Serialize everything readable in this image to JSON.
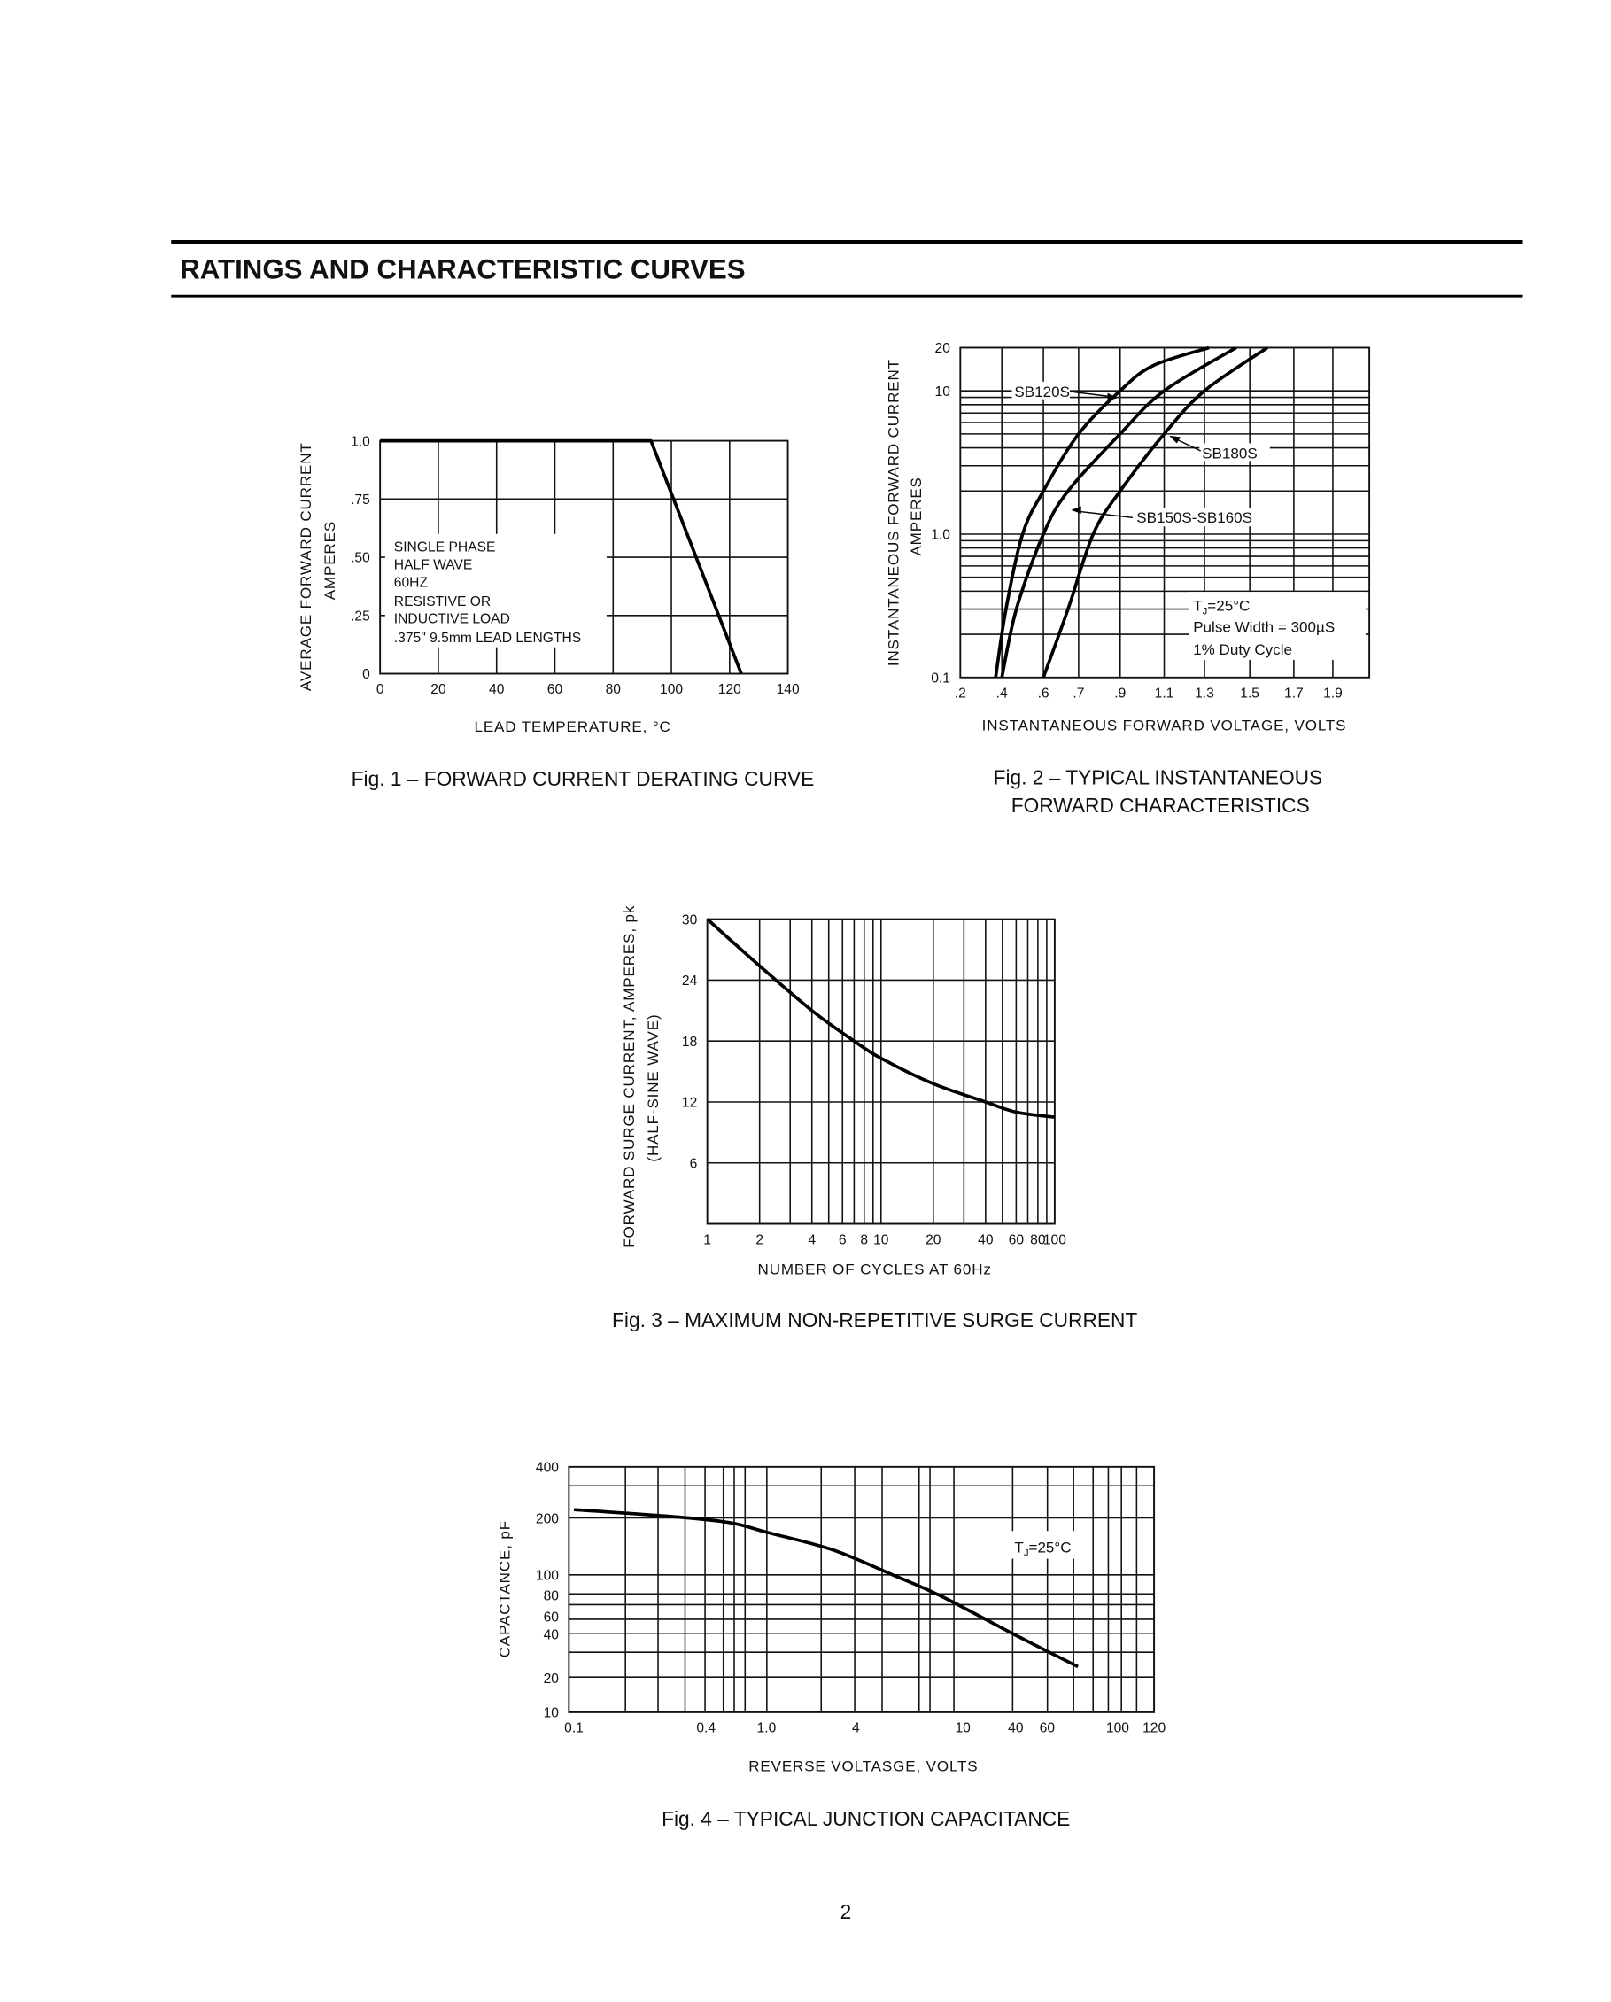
{
  "page": {
    "heading": "RATINGS AND CHARACTERISTIC CURVES",
    "page_number": "2"
  },
  "chart_data": [
    {
      "id": "fig1",
      "type": "line",
      "caption": "Fig. 1 – FORWARD CURRENT DERATING CURVE",
      "xlabel": "LEAD TEMPERATURE, °C",
      "ylabel": [
        "AVERAGE FORWARD CURRENT",
        "AMPERES"
      ],
      "xscale": "linear",
      "yscale": "linear",
      "xlim": [
        0,
        140
      ],
      "ylim": [
        0,
        1.0
      ],
      "grid": true,
      "x_ticks": [
        {
          "v": 0,
          "label": "0"
        },
        {
          "v": 20,
          "label": "20"
        },
        {
          "v": 40,
          "label": "40"
        },
        {
          "v": 60,
          "label": "60"
        },
        {
          "v": 80,
          "label": "80"
        },
        {
          "v": 100,
          "label": "100"
        },
        {
          "v": 120,
          "label": "120"
        },
        {
          "v": 140,
          "label": "140"
        }
      ],
      "y_ticks": [
        {
          "v": 0,
          "label": "0"
        },
        {
          "v": 0.25,
          "label": ".25"
        },
        {
          "v": 0.5,
          "label": ".50"
        },
        {
          "v": 0.75,
          "label": ".75"
        },
        {
          "v": 1.0,
          "label": "1.0"
        }
      ],
      "series": [
        {
          "points": [
            [
              0,
              1.0
            ],
            [
              93,
              1.0
            ],
            [
              124,
              0
            ]
          ]
        }
      ],
      "notes": [
        "SINGLE PHASE",
        "HALF WAVE",
        "60HZ",
        "RESISTIVE OR",
        "INDUCTIVE LOAD",
        ".375\" 9.5mm LEAD LENGTHS"
      ]
    },
    {
      "id": "fig2",
      "type": "line",
      "caption": [
        "Fig. 2 – TYPICAL INSTANTANEOUS",
        "FORWARD CHARACTERISTICS"
      ],
      "xlabel": "INSTANTANEOUS FORWARD VOLTAGE, VOLTS",
      "ylabel": [
        "INSTANTANEOUS FORWARD CURRENT",
        "AMPERES"
      ],
      "xscale": "linear",
      "yscale": "log",
      "xlim": [
        0.2,
        2.1
      ],
      "ylim": [
        0.1,
        20
      ],
      "grid": true,
      "x_ticks": [
        {
          "v": 0.2,
          "label": ".2"
        },
        {
          "v": 0.4,
          "label": ".4"
        },
        {
          "v": 0.6,
          "label": ".6"
        },
        {
          "v": 0.7,
          "label": ".7"
        },
        {
          "v": 0.9,
          "label": ".9"
        },
        {
          "v": 1.1,
          "label": "1.1"
        },
        {
          "v": 1.3,
          "label": "1.3"
        },
        {
          "v": 1.5,
          "label": "1.5"
        },
        {
          "v": 1.7,
          "label": "1.7"
        },
        {
          "v": 1.9,
          "label": "1.9"
        }
      ],
      "y_ticks": [
        {
          "v": 0.1,
          "label": "0.1"
        },
        {
          "v": 1.0,
          "label": "1.0"
        },
        {
          "v": 10,
          "label": "10"
        },
        {
          "v": 20,
          "label": "20"
        }
      ],
      "series": [
        {
          "name": "SB120S",
          "points": [
            [
              0.37,
              0.1
            ],
            [
              0.42,
              0.3
            ],
            [
              0.5,
              1.0
            ],
            [
              0.6,
              2.0
            ],
            [
              0.7,
              5.0
            ],
            [
              0.9,
              10
            ],
            [
              1.05,
              15
            ],
            [
              1.32,
              20
            ]
          ]
        },
        {
          "name": "SB150S-SB160S",
          "points": [
            [
              0.4,
              0.1
            ],
            [
              0.47,
              0.3
            ],
            [
              0.6,
              1.0
            ],
            [
              0.67,
              2.0
            ],
            [
              0.9,
              5.0
            ],
            [
              1.1,
              10
            ],
            [
              1.44,
              20
            ]
          ]
        },
        {
          "name": "SB180S",
          "points": [
            [
              0.6,
              0.1
            ],
            [
              0.67,
              0.3
            ],
            [
              0.77,
              1.0
            ],
            [
              0.9,
              2.0
            ],
            [
              1.1,
              5.0
            ],
            [
              1.3,
              10
            ],
            [
              1.58,
              20
            ]
          ]
        }
      ],
      "conditions": {
        "tj": {
          "symbol": "T",
          "subscript": "J",
          "value": "=25°C"
        },
        "pulse": "Pulse  Width = 300µS",
        "duty": "1%  Duty  Cycle"
      }
    },
    {
      "id": "fig3",
      "type": "line",
      "caption": "Fig. 3 – MAXIMUM NON-REPETITIVE SURGE CURRENT",
      "xlabel": "NUMBER OF CYCLES AT 60Hz",
      "ylabel": [
        "FORWARD SURGE CURRENT, AMPERES, pk",
        "(HALF-SINE WAVE)"
      ],
      "xscale": "log",
      "yscale": "linear",
      "xlim": [
        1,
        100
      ],
      "ylim": [
        0,
        30
      ],
      "grid": true,
      "x_ticks": [
        {
          "v": 1,
          "label": "1"
        },
        {
          "v": 2,
          "label": "2"
        },
        {
          "v": 4,
          "label": "4"
        },
        {
          "v": 6,
          "label": "6"
        },
        {
          "v": 8,
          "label": "8"
        },
        {
          "v": 10,
          "label": "10"
        },
        {
          "v": 20,
          "label": "20"
        },
        {
          "v": 40,
          "label": "40"
        },
        {
          "v": 60,
          "label": "60"
        },
        {
          "v": 80,
          "label": "80"
        },
        {
          "v": 100,
          "label": "100"
        }
      ],
      "y_ticks": [
        {
          "v": 6,
          "label": "6"
        },
        {
          "v": 12,
          "label": "12"
        },
        {
          "v": 18,
          "label": "18"
        },
        {
          "v": 24,
          "label": "24"
        },
        {
          "v": 30,
          "label": "30"
        }
      ],
      "series": [
        {
          "points": [
            [
              1,
              30
            ],
            [
              2,
              25.4
            ],
            [
              4,
              21
            ],
            [
              7,
              18
            ],
            [
              10,
              16.3
            ],
            [
              20,
              13.8
            ],
            [
              40,
              12
            ],
            [
              60,
              11
            ],
            [
              100,
              10.5
            ]
          ]
        }
      ]
    },
    {
      "id": "fig4",
      "type": "line",
      "caption": "Fig. 4 – TYPICAL JUNCTION CAPACITANCE",
      "xlabel": "REVERSE VOLTASGE, VOLTS",
      "ylabel": [
        "CAPACTANCE, pF"
      ],
      "xscale": "log",
      "yscale": "log",
      "xlim": [
        0.1,
        120
      ],
      "ylim": [
        10,
        400
      ],
      "grid": true,
      "x_ticks": [
        {
          "v": 0.1,
          "label": "0.1"
        },
        {
          "v": 0.4,
          "label": "0.4"
        },
        {
          "v": 1.0,
          "label": "1.0"
        },
        {
          "v": 4,
          "label": "4"
        },
        {
          "v": 10,
          "label": "10"
        },
        {
          "v": 40,
          "label": "40"
        },
        {
          "v": 60,
          "label": "60"
        },
        {
          "v": 100,
          "label": "100"
        },
        {
          "v": 120,
          "label": "120"
        }
      ],
      "y_ticks": [
        {
          "v": 10,
          "label": "10"
        },
        {
          "v": 20,
          "label": "20"
        },
        {
          "v": 40,
          "label": "40"
        },
        {
          "v": 60,
          "label": "60"
        },
        {
          "v": 80,
          "label": "80"
        },
        {
          "v": 100,
          "label": "100"
        },
        {
          "v": 200,
          "label": "200"
        },
        {
          "v": 400,
          "label": "400"
        }
      ],
      "series": [
        {
          "points": [
            [
              0.1,
              225
            ],
            [
              0.28,
              205
            ],
            [
              0.57,
              190
            ],
            [
              1.0,
              169
            ],
            [
              2.8,
              136
            ],
            [
              5.5,
              100
            ],
            [
              8.3,
              79
            ],
            [
              38,
              40
            ],
            [
              75,
              24
            ]
          ]
        }
      ],
      "conditions": {
        "tj": {
          "symbol": "T",
          "subscript": "J",
          "value": "=25°C"
        }
      }
    }
  ]
}
